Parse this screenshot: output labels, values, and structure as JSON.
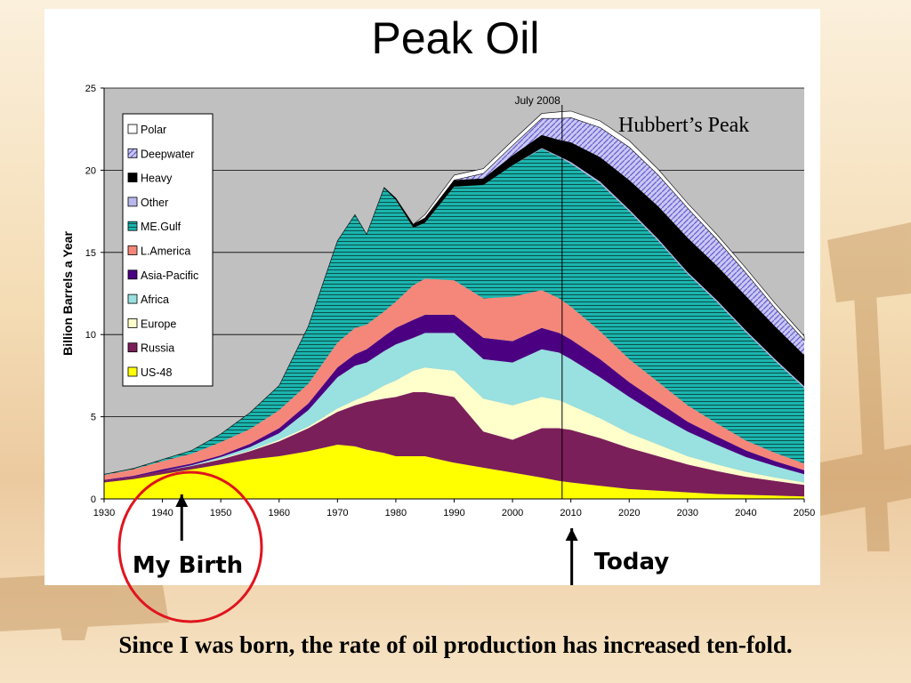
{
  "slide": {
    "title": "Peak Oil",
    "caption": "Since I was born, the rate of oil production has increased ten-fold."
  },
  "chart_data": {
    "type": "area",
    "stacked": true,
    "ylabel": "Billion Barrels a Year",
    "xlabel": "",
    "xlim": [
      1930,
      2050
    ],
    "ylim": [
      0,
      25
    ],
    "x_ticks": [
      "1930",
      "1940",
      "1950",
      "1960",
      "1970",
      "1980",
      "1990",
      "2000",
      "2010",
      "2020",
      "2030",
      "2040",
      "2050"
    ],
    "y_ticks": [
      "0",
      "5",
      "10",
      "15",
      "20",
      "25"
    ],
    "grid": true,
    "legend_position": "top-left",
    "x": [
      1930,
      1935,
      1940,
      1945,
      1950,
      1955,
      1960,
      1965,
      1970,
      1973,
      1975,
      1978,
      1980,
      1983,
      1985,
      1990,
      1995,
      2000,
      2005,
      2008,
      2010,
      2015,
      2020,
      2025,
      2030,
      2035,
      2040,
      2045,
      2050
    ],
    "series": [
      {
        "name": "US-48",
        "color": "#ffff00",
        "values": [
          1.0,
          1.2,
          1.5,
          1.8,
          2.1,
          2.4,
          2.6,
          2.9,
          3.3,
          3.2,
          3.0,
          2.8,
          2.6,
          2.6,
          2.6,
          2.2,
          1.9,
          1.6,
          1.3,
          1.1,
          1.0,
          0.8,
          0.6,
          0.5,
          0.4,
          0.3,
          0.25,
          0.2,
          0.15
        ]
      },
      {
        "name": "Russia",
        "color": "#7b1f5a",
        "values": [
          0.1,
          0.15,
          0.2,
          0.2,
          0.3,
          0.5,
          0.9,
          1.4,
          2.0,
          2.5,
          2.9,
          3.3,
          3.6,
          3.9,
          3.9,
          4.0,
          2.2,
          2.0,
          3.0,
          3.2,
          3.2,
          2.9,
          2.5,
          2.1,
          1.7,
          1.4,
          1.1,
          0.9,
          0.7
        ]
      },
      {
        "name": "Europe",
        "color": "#ffffcc",
        "values": [
          0.0,
          0.0,
          0.0,
          0.0,
          0.05,
          0.05,
          0.1,
          0.1,
          0.2,
          0.3,
          0.4,
          0.8,
          1.0,
          1.3,
          1.5,
          1.6,
          2.0,
          2.1,
          1.9,
          1.7,
          1.5,
          1.2,
          0.9,
          0.7,
          0.5,
          0.4,
          0.3,
          0.2,
          0.15
        ]
      },
      {
        "name": "Africa",
        "color": "#99e0e0",
        "values": [
          0.0,
          0.0,
          0.0,
          0.05,
          0.1,
          0.2,
          0.4,
          1.0,
          1.9,
          2.1,
          2.0,
          2.1,
          2.2,
          2.0,
          2.1,
          2.3,
          2.4,
          2.6,
          2.9,
          2.9,
          2.8,
          2.5,
          2.2,
          1.8,
          1.5,
          1.2,
          0.9,
          0.7,
          0.5
        ]
      },
      {
        "name": "Asia-Pacific",
        "color": "#4b0082",
        "values": [
          0.05,
          0.05,
          0.1,
          0.1,
          0.1,
          0.2,
          0.3,
          0.4,
          0.6,
          0.7,
          0.8,
          0.9,
          1.0,
          1.1,
          1.1,
          1.1,
          1.3,
          1.3,
          1.3,
          1.2,
          1.2,
          1.1,
          0.9,
          0.8,
          0.6,
          0.5,
          0.4,
          0.3,
          0.25
        ]
      },
      {
        "name": "L.America",
        "color": "#f4877a",
        "values": [
          0.3,
          0.4,
          0.5,
          0.6,
          0.8,
          0.9,
          1.1,
          1.2,
          1.5,
          1.6,
          1.5,
          1.5,
          1.6,
          2.1,
          2.2,
          2.1,
          2.4,
          2.7,
          2.3,
          2.1,
          2.0,
          1.7,
          1.4,
          1.2,
          1.0,
          0.8,
          0.6,
          0.5,
          0.4
        ]
      },
      {
        "name": "ME.Gulf",
        "color": "#1bb5ae",
        "values": [
          0.05,
          0.05,
          0.1,
          0.2,
          0.5,
          1.0,
          1.5,
          3.5,
          6.2,
          6.9,
          5.5,
          7.5,
          6.2,
          3.5,
          3.4,
          5.7,
          6.9,
          8.0,
          8.6,
          8.6,
          8.7,
          9.0,
          9.0,
          8.6,
          8.0,
          7.4,
          6.6,
          5.6,
          4.6
        ]
      },
      {
        "name": "Other",
        "color": "#b8b8ec",
        "values": [
          0.0,
          0.0,
          0.0,
          0.0,
          0.0,
          0.0,
          0.0,
          0.0,
          0.0,
          0.0,
          0.0,
          0.0,
          0.0,
          0.0,
          0.0,
          0.0,
          0.0,
          0.0,
          0.05,
          0.05,
          0.1,
          0.1,
          0.1,
          0.1,
          0.1,
          0.1,
          0.1,
          0.1,
          0.1
        ]
      },
      {
        "name": "Heavy",
        "color": "#000000",
        "values": [
          0.0,
          0.0,
          0.0,
          0.0,
          0.0,
          0.0,
          0.0,
          0.0,
          0.0,
          0.0,
          0.0,
          0.05,
          0.1,
          0.2,
          0.3,
          0.4,
          0.4,
          0.6,
          0.8,
          1.0,
          1.2,
          1.5,
          1.8,
          2.0,
          2.1,
          2.1,
          2.1,
          2.0,
          1.9
        ]
      },
      {
        "name": "Deepwater",
        "color": "#6a5acd",
        "values": [
          0.0,
          0.0,
          0.0,
          0.0,
          0.0,
          0.0,
          0.0,
          0.0,
          0.0,
          0.0,
          0.0,
          0.0,
          0.0,
          0.0,
          0.0,
          0.0,
          0.3,
          0.6,
          1.0,
          1.3,
          1.5,
          1.8,
          2.0,
          1.9,
          1.8,
          1.6,
          1.4,
          1.1,
          0.9
        ]
      },
      {
        "name": "Polar",
        "color": "#ffffff",
        "values": [
          0.0,
          0.0,
          0.0,
          0.0,
          0.0,
          0.0,
          0.0,
          0.0,
          0.0,
          0.0,
          0.0,
          0.0,
          0.0,
          0.0,
          0.2,
          0.3,
          0.3,
          0.3,
          0.3,
          0.4,
          0.4,
          0.4,
          0.4,
          0.35,
          0.3,
          0.3,
          0.3,
          0.3,
          0.25
        ]
      }
    ],
    "annotations": {
      "peak_label": "July 2008",
      "peak_year": 2008.5,
      "hubbert": "Hubbert’s Peak",
      "birth_label": "My Birth",
      "birth_year": 1943,
      "today_label": "Today",
      "today_year": 2010
    }
  }
}
